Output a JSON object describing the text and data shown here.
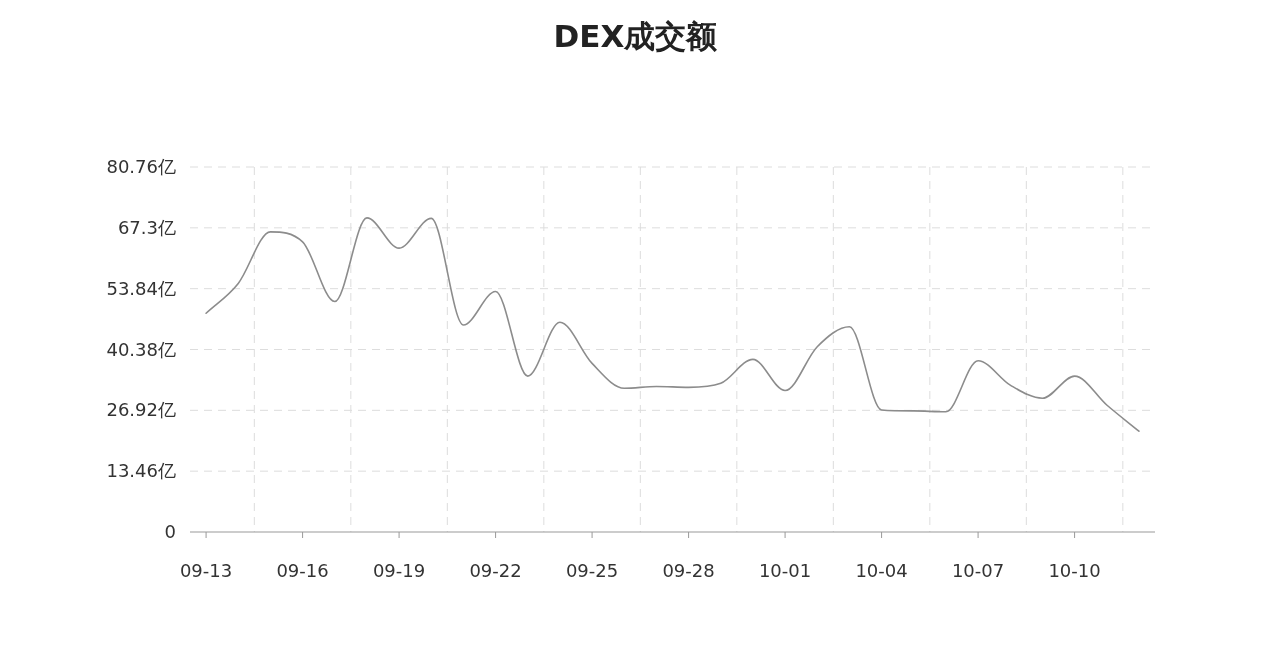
{
  "chart_data": {
    "type": "line",
    "title": "DEX成交额",
    "categories": [
      "09-13",
      null,
      null,
      "09-16",
      null,
      null,
      "09-19",
      null,
      null,
      "09-22",
      null,
      null,
      "09-25",
      null,
      null,
      "09-28",
      null,
      null,
      "10-01",
      null,
      null,
      "10-04",
      null,
      null,
      "10-07",
      null,
      null,
      "10-10",
      null,
      null
    ],
    "series": [
      {
        "color": "#8c8c8c",
        "values": [
          48.4,
          55.0,
          66.4,
          64.2,
          51.0,
          69.5,
          62.8,
          69.4,
          45.8,
          53.2,
          34.5,
          46.4,
          37.3,
          31.8,
          32.2,
          32.0,
          32.9,
          38.2,
          31.3,
          41.0,
          45.4,
          27.0,
          26.8,
          26.6,
          37.9,
          32.5,
          29.6,
          34.5,
          28.1,
          22.3
        ]
      }
    ],
    "ylim": [
      0,
      80.76
    ],
    "yticks": [
      0,
      {
        "value": 13.46,
        "label": "13.46亿"
      },
      {
        "value": 26.92,
        "label": "26.92亿"
      },
      {
        "value": 40.38,
        "label": "40.38亿"
      },
      {
        "value": 53.84,
        "label": "53.84亿"
      },
      {
        "value": 67.3,
        "label": "67.3亿"
      },
      {
        "value": 80.76,
        "label": "80.76亿"
      }
    ],
    "grid": true,
    "marker": "none",
    "line_style": "solid"
  }
}
